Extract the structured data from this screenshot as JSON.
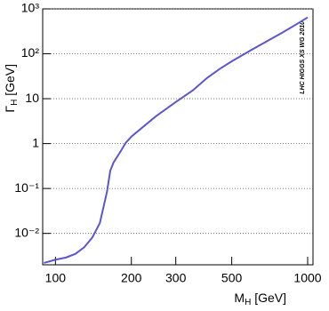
{
  "chart_data": {
    "type": "line",
    "x_label": {
      "main": "M",
      "sub": "H",
      "unit": " [GeV]"
    },
    "y_label": {
      "main": "Γ",
      "sub": "H",
      "unit": " [GeV]"
    },
    "annotation": "LHC HIGGS XS WG 2010",
    "x": [
      90,
      100,
      110,
      120,
      130,
      140,
      150,
      160,
      165,
      170,
      180,
      190,
      200,
      250,
      300,
      350,
      400,
      450,
      500,
      600,
      700,
      800,
      900,
      1000
    ],
    "series": [
      {
        "color": "#5a55d0",
        "values": [
          0.0022,
          0.0026,
          0.0029,
          0.0035,
          0.0049,
          0.0081,
          0.017,
          0.083,
          0.25,
          0.38,
          0.63,
          1.04,
          1.43,
          4.04,
          8.43,
          15.2,
          29.2,
          46.8,
          68,
          123,
          199,
          304,
          449,
          647
        ]
      }
    ],
    "xlim": [
      89,
      1050
    ],
    "ylim": [
      0.002,
      1000
    ],
    "x_log": true,
    "y_log": true,
    "grid": true,
    "xticks": [
      100,
      200,
      300,
      500,
      1000
    ],
    "yticks": [
      {
        "value": 0.01,
        "label": "10⁻²"
      },
      {
        "value": 0.1,
        "label": "10⁻¹"
      },
      1,
      10,
      {
        "value": 100,
        "label": "10²"
      },
      {
        "value": 1000,
        "label": "10³"
      }
    ]
  }
}
